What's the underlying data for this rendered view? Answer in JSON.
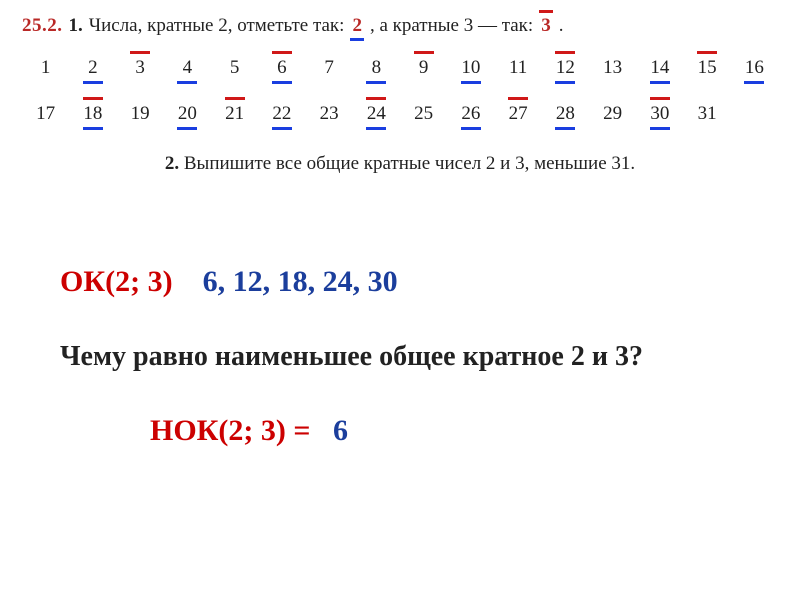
{
  "colors": {
    "marker_blue": "#1a3ee0",
    "marker_red": "#d01818",
    "exercise_num": "#b92826",
    "solution_red": "#cc0000",
    "solution_blue": "#1b3e9c",
    "text": "#222222",
    "bg": "#ffffff"
  },
  "typography": {
    "body_fontsize_pt": 14,
    "solution_fontsize_pt": 22,
    "font_family": "Times New Roman"
  },
  "exercise": {
    "number": "25.2.",
    "part1_index": "1.",
    "part1_a": "Числа, кратные 2, отметьте так:",
    "demo2": "2",
    "part1_b": ", а кратные 3 — так:",
    "demo3": "3",
    "part1_c": ".",
    "numbers": [
      {
        "n": "1"
      },
      {
        "n": "2",
        "mult2": true
      },
      {
        "n": "3",
        "mult3": true
      },
      {
        "n": "4",
        "mult2": true
      },
      {
        "n": "5"
      },
      {
        "n": "6",
        "mult2": true,
        "mult3": true
      },
      {
        "n": "7"
      },
      {
        "n": "8",
        "mult2": true
      },
      {
        "n": "9",
        "mult3": true
      },
      {
        "n": "10",
        "mult2": true
      },
      {
        "n": "11"
      },
      {
        "n": "12",
        "mult2": true,
        "mult3": true
      },
      {
        "n": "13"
      },
      {
        "n": "14",
        "mult2": true
      },
      {
        "n": "15",
        "mult3": true
      },
      {
        "n": "16",
        "mult2": true
      },
      {
        "n": "17"
      },
      {
        "n": "18",
        "mult2": true,
        "mult3": true
      },
      {
        "n": "19"
      },
      {
        "n": "20",
        "mult2": true
      },
      {
        "n": "21",
        "mult3": true
      },
      {
        "n": "22",
        "mult2": true
      },
      {
        "n": "23"
      },
      {
        "n": "24",
        "mult2": true,
        "mult3": true
      },
      {
        "n": "25"
      },
      {
        "n": "26",
        "mult2": true
      },
      {
        "n": "27",
        "mult3": true
      },
      {
        "n": "28",
        "mult2": true
      },
      {
        "n": "29"
      },
      {
        "n": "30",
        "mult2": true,
        "mult3": true
      },
      {
        "n": "31"
      }
    ],
    "part2_index": "2.",
    "part2_text": "Выпишите все общие кратные чисел 2 и 3, меньшие 31."
  },
  "solution": {
    "ok_label": "ОК(2; 3)",
    "ok_values": "6,  12,  18,  24,  30",
    "question": "Чему равно наименьшее общее кратное 2 и 3?",
    "nok_label": "НОК(2; 3) =",
    "nok_value": "6"
  }
}
